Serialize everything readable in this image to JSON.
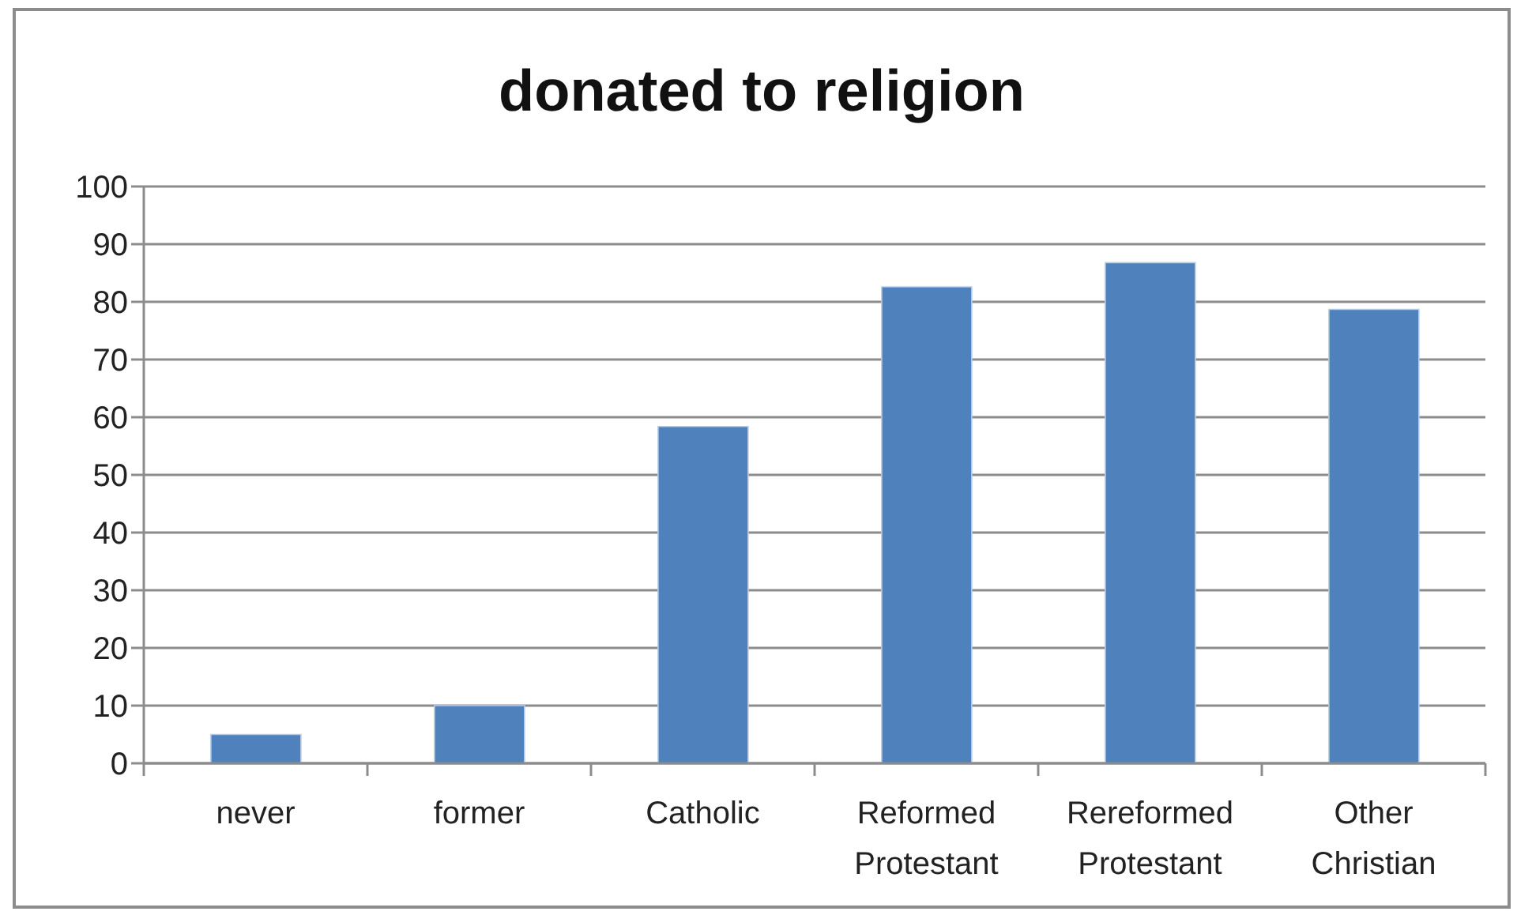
{
  "chart_data": {
    "type": "bar",
    "title": "donated to religion",
    "categories": [
      "never",
      "former",
      "Catholic",
      "Reformed Protestant",
      "Rereformed Protestant",
      "Other Christian"
    ],
    "values": [
      5,
      10,
      58.4,
      82.6,
      86.8,
      78.7
    ],
    "color": "#4f81bd",
    "ylim": [
      0,
      100
    ],
    "yticks": [
      0,
      10,
      20,
      30,
      40,
      50,
      60,
      70,
      80,
      90,
      100
    ],
    "grid": "y"
  }
}
